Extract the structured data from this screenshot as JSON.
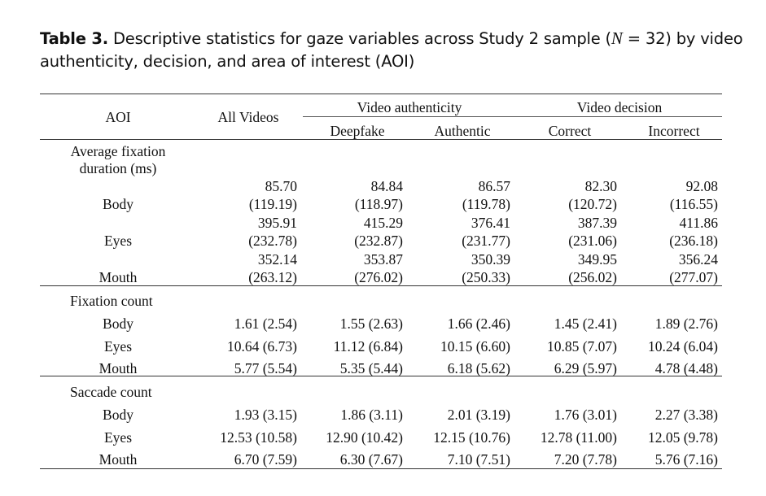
{
  "title": {
    "label": "Table 3.",
    "text_before_n": "Descriptive statistics for gaze variables across Study 2 sample (",
    "n_symbol": "N",
    "text_after_n": " = 32) by video authenticity, decision, and area of interest (AOI)"
  },
  "header": {
    "aoi": "AOI",
    "all_videos": "All Videos",
    "group_authenticity": "Video authenticity",
    "group_decision": "Video decision",
    "deepfake": "Deepfake",
    "authentic": "Authentic",
    "correct": "Correct",
    "incorrect": "Incorrect"
  },
  "sections": [
    {
      "label_lines": [
        "Average fixation",
        "duration (ms)"
      ],
      "split": true,
      "rows": [
        {
          "aoi": "Body",
          "means": [
            "85.70",
            "84.84",
            "86.57",
            "82.30",
            "92.08"
          ],
          "sds": [
            "(119.19)",
            "(118.97)",
            "(119.78)",
            "(120.72)",
            "(116.55)"
          ]
        },
        {
          "aoi": "Eyes",
          "means": [
            "395.91",
            "415.29",
            "376.41",
            "387.39",
            "411.86"
          ],
          "sds": [
            "(232.78)",
            "(232.87)",
            "(231.77)",
            "(231.06)",
            "(236.18)"
          ]
        },
        {
          "aoi": "Mouth",
          "means": [
            "352.14",
            "353.87",
            "350.39",
            "349.95",
            "356.24"
          ],
          "sds": [
            "(263.12)",
            "(276.02)",
            "(250.33)",
            "(256.02)",
            "(277.07)"
          ]
        }
      ]
    },
    {
      "label_lines": [
        "Fixation count"
      ],
      "split": false,
      "rows": [
        {
          "aoi": "Body",
          "values": [
            "1.61 (2.54)",
            "1.55 (2.63)",
            "1.66 (2.46)",
            "1.45 (2.41)",
            "1.89 (2.76)"
          ]
        },
        {
          "aoi": "Eyes",
          "values": [
            "10.64 (6.73)",
            "11.12 (6.84)",
            "10.15 (6.60)",
            "10.85 (7.07)",
            "10.24 (6.04)"
          ]
        },
        {
          "aoi": "Mouth",
          "values": [
            "5.77 (5.54)",
            "5.35 (5.44)",
            "6.18 (5.62)",
            "6.29 (5.97)",
            "4.78 (4.48)"
          ]
        }
      ]
    },
    {
      "label_lines": [
        "Saccade count"
      ],
      "split": false,
      "rows": [
        {
          "aoi": "Body",
          "values": [
            "1.93 (3.15)",
            "1.86 (3.11)",
            "2.01 (3.19)",
            "1.76 (3.01)",
            "2.27 (3.38)"
          ]
        },
        {
          "aoi": "Eyes",
          "values": [
            "12.53 (10.58)",
            "12.90 (10.42)",
            "12.15 (10.76)",
            "12.78 (11.00)",
            "12.05 (9.78)"
          ]
        },
        {
          "aoi": "Mouth",
          "values": [
            "6.70 (7.59)",
            "6.30 (7.67)",
            "7.10 (7.51)",
            "7.20 (7.78)",
            "5.76 (7.16)"
          ]
        }
      ]
    }
  ]
}
